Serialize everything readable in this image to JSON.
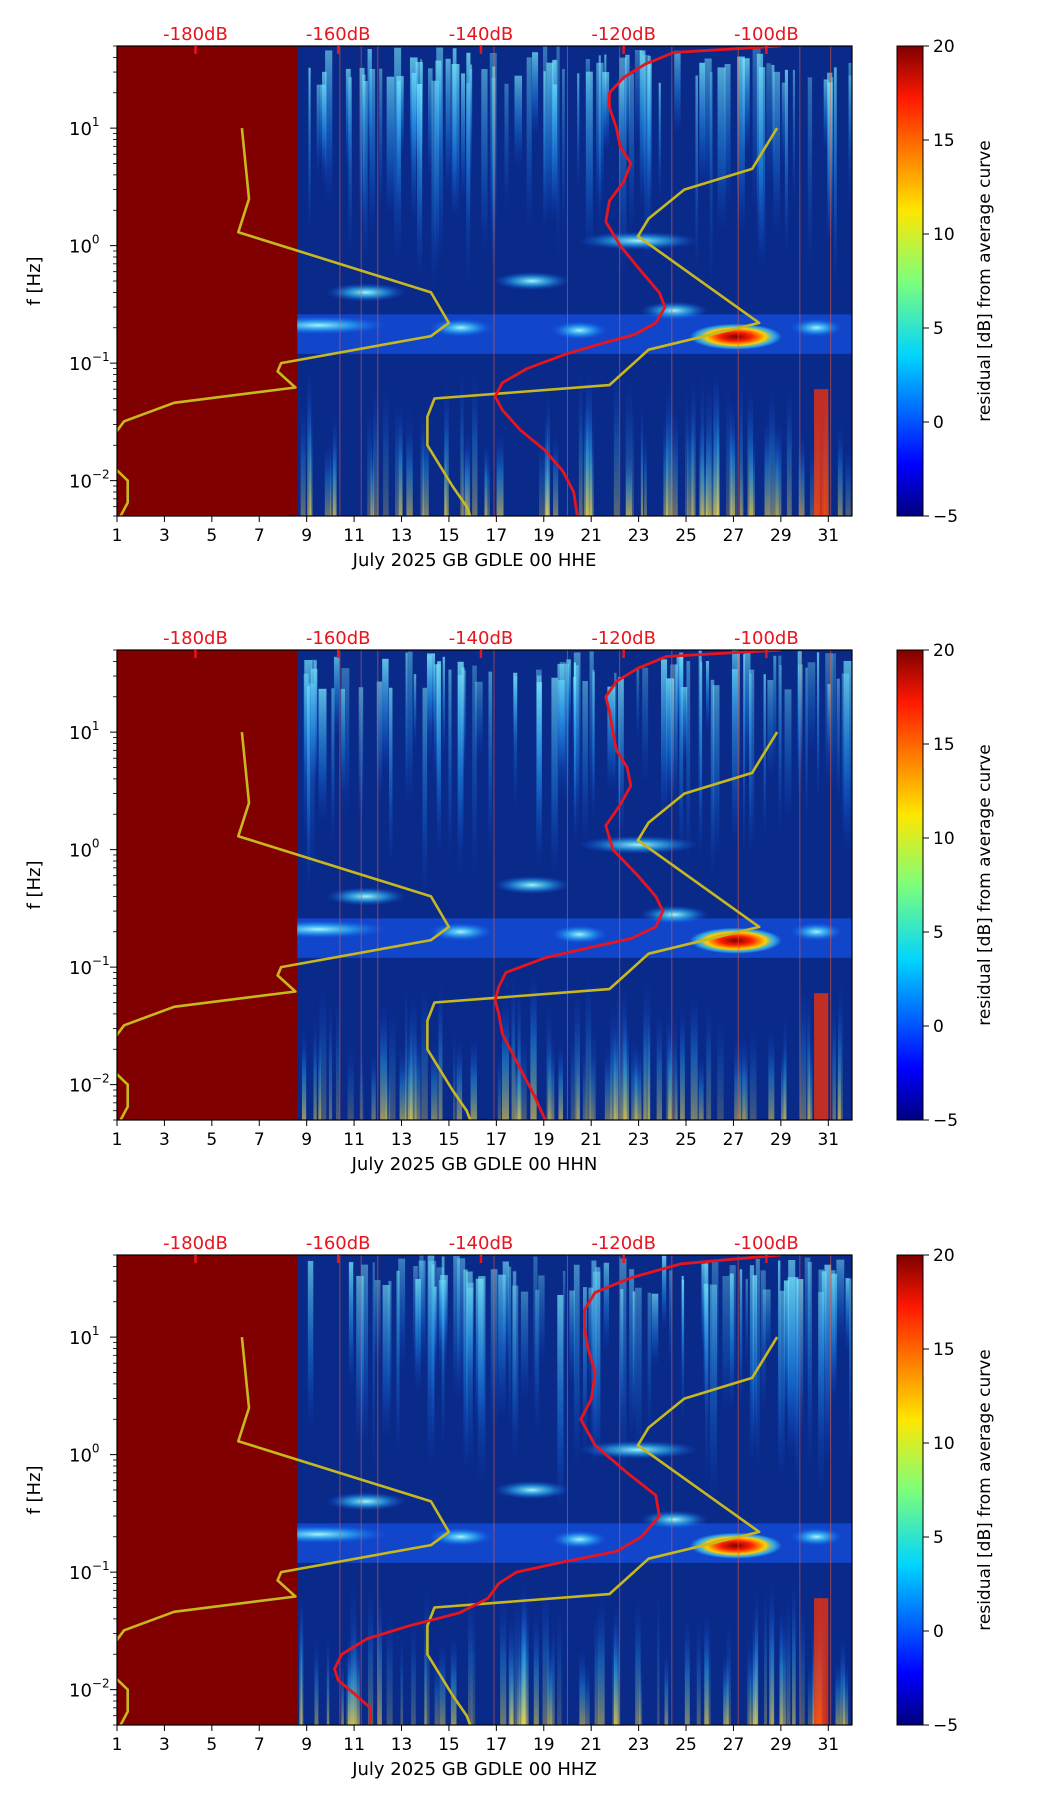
{
  "colors": {
    "background_no_data": "#800000",
    "spectrogram_base": "#0a2a8a",
    "median_curve": "#e8141e",
    "noise_model": "#c8b820",
    "top_labels": "#e8141e",
    "axis": "#000000"
  },
  "colorbar": {
    "label": "residual [dB] from average curve",
    "ticks": [
      "20",
      "15",
      "10",
      "5",
      "0",
      "−5"
    ],
    "tick_values": [
      20,
      15,
      10,
      5,
      0,
      -5
    ],
    "range": [
      -5,
      20
    ]
  },
  "chart_data": [
    {
      "type": "heatmap",
      "title": "",
      "xlabel": "July 2025 GB GDLE 00 HHE",
      "ylabel": "f [Hz]",
      "x_ticks": [
        "1",
        "3",
        "5",
        "7",
        "9",
        "11",
        "13",
        "15",
        "17",
        "19",
        "21",
        "23",
        "25",
        "27",
        "29",
        "31"
      ],
      "x_tick_values": [
        1,
        3,
        5,
        7,
        9,
        11,
        13,
        15,
        17,
        19,
        21,
        23,
        25,
        27,
        29,
        31
      ],
      "xlim": [
        1,
        32
      ],
      "ylim": [
        0.005,
        50
      ],
      "y_scale": "log",
      "y_ticks": [
        {
          "value": 0.01,
          "base": "10",
          "exp": "−2"
        },
        {
          "value": 0.1,
          "base": "10",
          "exp": "−1"
        },
        {
          "value": 1,
          "base": "10",
          "exp": "0"
        },
        {
          "value": 10,
          "base": "10",
          "exp": "1"
        }
      ],
      "top_axis_labels": [
        "-180dB",
        "-160dB",
        "-140dB",
        "-120dB",
        "-100dB"
      ],
      "top_axis_values": [
        -180,
        -160,
        -140,
        -120,
        -100
      ],
      "no_data_until_day": 8.6,
      "median_curve": [
        {
          "db": -126.5,
          "f": 0.005
        },
        {
          "db": -127,
          "f": 0.008
        },
        {
          "db": -128.5,
          "f": 0.012
        },
        {
          "db": -131,
          "f": 0.018
        },
        {
          "db": -134.5,
          "f": 0.027
        },
        {
          "db": -137,
          "f": 0.04
        },
        {
          "db": -138,
          "f": 0.052
        },
        {
          "db": -137,
          "f": 0.068
        },
        {
          "db": -133.5,
          "f": 0.09
        },
        {
          "db": -128,
          "f": 0.12
        },
        {
          "db": -122.5,
          "f": 0.15
        },
        {
          "db": -118.5,
          "f": 0.175
        },
        {
          "db": -115.5,
          "f": 0.22
        },
        {
          "db": -114.2,
          "f": 0.3
        },
        {
          "db": -115,
          "f": 0.4
        },
        {
          "db": -117.5,
          "f": 0.6
        },
        {
          "db": -120.5,
          "f": 1.0
        },
        {
          "db": -122.5,
          "f": 1.6
        },
        {
          "db": -122,
          "f": 2.4
        },
        {
          "db": -120,
          "f": 3.5
        },
        {
          "db": -119,
          "f": 5.0
        },
        {
          "db": -120.5,
          "f": 7.0
        },
        {
          "db": -121,
          "f": 10.0
        },
        {
          "db": -122,
          "f": 15.0
        },
        {
          "db": -122,
          "f": 20.0
        },
        {
          "db": -120,
          "f": 27.0
        },
        {
          "db": -117,
          "f": 35.0
        },
        {
          "db": -113,
          "f": 44.0
        },
        {
          "db": -98,
          "f": 50.0
        }
      ],
      "noise_model": {
        "low": [
          {
            "db": -173.5,
            "f": 10.0
          },
          {
            "db": -172.5,
            "f": 2.5
          },
          {
            "db": -174,
            "f": 1.3
          },
          {
            "db": -147,
            "f": 0.4
          },
          {
            "db": -144.5,
            "f": 0.22
          },
          {
            "db": -147,
            "f": 0.17
          },
          {
            "db": -168,
            "f": 0.1
          },
          {
            "db": -168.5,
            "f": 0.085
          },
          {
            "db": -166,
            "f": 0.062
          },
          {
            "db": -183,
            "f": 0.046
          },
          {
            "db": -190,
            "f": 0.032
          },
          {
            "db": -192,
            "f": 0.022
          },
          {
            "db": -192,
            "f": 0.014
          },
          {
            "db": -189.5,
            "f": 0.01
          },
          {
            "db": -189.5,
            "f": 0.0065
          },
          {
            "db": -190.5,
            "f": 0.005
          }
        ],
        "high": [
          {
            "db": -141.5,
            "f": 0.005
          },
          {
            "db": -142,
            "f": 0.006
          },
          {
            "db": -144,
            "f": 0.009
          },
          {
            "db": -147.5,
            "f": 0.02
          },
          {
            "db": -147.5,
            "f": 0.035
          },
          {
            "db": -146.5,
            "f": 0.05
          },
          {
            "db": -122,
            "f": 0.065
          },
          {
            "db": -116.5,
            "f": 0.13
          },
          {
            "db": -101,
            "f": 0.22
          },
          {
            "db": -118,
            "f": 1.2
          },
          {
            "db": -116.5,
            "f": 1.7
          },
          {
            "db": -111.5,
            "f": 3.0
          },
          {
            "db": -102,
            "f": 4.5
          },
          {
            "db": -98.5,
            "f": 10.0
          }
        ]
      }
    },
    {
      "type": "heatmap",
      "title": "",
      "xlabel": "July 2025 GB GDLE 00 HHN",
      "ylabel": "f [Hz]",
      "x_ticks": [
        "1",
        "3",
        "5",
        "7",
        "9",
        "11",
        "13",
        "15",
        "17",
        "19",
        "21",
        "23",
        "25",
        "27",
        "29",
        "31"
      ],
      "x_tick_values": [
        1,
        3,
        5,
        7,
        9,
        11,
        13,
        15,
        17,
        19,
        21,
        23,
        25,
        27,
        29,
        31
      ],
      "xlim": [
        1,
        32
      ],
      "ylim": [
        0.005,
        50
      ],
      "y_scale": "log",
      "y_ticks": [
        {
          "value": 0.01,
          "base": "10",
          "exp": "−2"
        },
        {
          "value": 0.1,
          "base": "10",
          "exp": "−1"
        },
        {
          "value": 1,
          "base": "10",
          "exp": "0"
        },
        {
          "value": 10,
          "base": "10",
          "exp": "1"
        }
      ],
      "top_axis_labels": [
        "-180dB",
        "-160dB",
        "-140dB",
        "-120dB",
        "-100dB"
      ],
      "top_axis_values": [
        -180,
        -160,
        -140,
        -120,
        -100
      ],
      "no_data_until_day": 8.6,
      "median_curve": [
        {
          "db": -131,
          "f": 0.005
        },
        {
          "db": -132.5,
          "f": 0.008
        },
        {
          "db": -134,
          "f": 0.012
        },
        {
          "db": -135.5,
          "f": 0.018
        },
        {
          "db": -137,
          "f": 0.027
        },
        {
          "db": -137.5,
          "f": 0.04
        },
        {
          "db": -138,
          "f": 0.052
        },
        {
          "db": -137.5,
          "f": 0.068
        },
        {
          "db": -136.5,
          "f": 0.09
        },
        {
          "db": -131,
          "f": 0.12
        },
        {
          "db": -124,
          "f": 0.15
        },
        {
          "db": -119,
          "f": 0.175
        },
        {
          "db": -115.5,
          "f": 0.22
        },
        {
          "db": -114.5,
          "f": 0.3
        },
        {
          "db": -115.5,
          "f": 0.4
        },
        {
          "db": -118,
          "f": 0.6
        },
        {
          "db": -121.5,
          "f": 1.0
        },
        {
          "db": -122.5,
          "f": 1.6
        },
        {
          "db": -120.5,
          "f": 2.4
        },
        {
          "db": -119,
          "f": 3.5
        },
        {
          "db": -119.5,
          "f": 5.0
        },
        {
          "db": -121,
          "f": 7.0
        },
        {
          "db": -121.5,
          "f": 10.0
        },
        {
          "db": -122,
          "f": 15.0
        },
        {
          "db": -122.5,
          "f": 20.0
        },
        {
          "db": -121,
          "f": 27.0
        },
        {
          "db": -118,
          "f": 35.0
        },
        {
          "db": -114,
          "f": 44.0
        },
        {
          "db": -98,
          "f": 50.0
        }
      ],
      "noise_model": {
        "low": [
          {
            "db": -173.5,
            "f": 10.0
          },
          {
            "db": -172.5,
            "f": 2.5
          },
          {
            "db": -174,
            "f": 1.3
          },
          {
            "db": -147,
            "f": 0.4
          },
          {
            "db": -144.5,
            "f": 0.22
          },
          {
            "db": -147,
            "f": 0.17
          },
          {
            "db": -168,
            "f": 0.1
          },
          {
            "db": -168.5,
            "f": 0.085
          },
          {
            "db": -166,
            "f": 0.062
          },
          {
            "db": -183,
            "f": 0.046
          },
          {
            "db": -190,
            "f": 0.032
          },
          {
            "db": -192,
            "f": 0.022
          },
          {
            "db": -192,
            "f": 0.014
          },
          {
            "db": -189.5,
            "f": 0.01
          },
          {
            "db": -189.5,
            "f": 0.0065
          },
          {
            "db": -190.5,
            "f": 0.005
          }
        ],
        "high": [
          {
            "db": -141.5,
            "f": 0.005
          },
          {
            "db": -142,
            "f": 0.006
          },
          {
            "db": -144,
            "f": 0.009
          },
          {
            "db": -147.5,
            "f": 0.02
          },
          {
            "db": -147.5,
            "f": 0.035
          },
          {
            "db": -146.5,
            "f": 0.05
          },
          {
            "db": -122,
            "f": 0.065
          },
          {
            "db": -116.5,
            "f": 0.13
          },
          {
            "db": -101,
            "f": 0.22
          },
          {
            "db": -118,
            "f": 1.2
          },
          {
            "db": -116.5,
            "f": 1.7
          },
          {
            "db": -111.5,
            "f": 3.0
          },
          {
            "db": -102,
            "f": 4.5
          },
          {
            "db": -98.5,
            "f": 10.0
          }
        ]
      }
    },
    {
      "type": "heatmap",
      "title": "",
      "xlabel": "July 2025 GB GDLE 00 HHZ",
      "ylabel": "f [Hz]",
      "x_ticks": [
        "1",
        "3",
        "5",
        "7",
        "9",
        "11",
        "13",
        "15",
        "17",
        "19",
        "21",
        "23",
        "25",
        "27",
        "29",
        "31"
      ],
      "x_tick_values": [
        1,
        3,
        5,
        7,
        9,
        11,
        13,
        15,
        17,
        19,
        21,
        23,
        25,
        27,
        29,
        31
      ],
      "xlim": [
        1,
        32
      ],
      "ylim": [
        0.005,
        50
      ],
      "y_scale": "log",
      "y_ticks": [
        {
          "value": 0.01,
          "base": "10",
          "exp": "−2"
        },
        {
          "value": 0.1,
          "base": "10",
          "exp": "−1"
        },
        {
          "value": 1,
          "base": "10",
          "exp": "0"
        },
        {
          "value": 10,
          "base": "10",
          "exp": "1"
        }
      ],
      "top_axis_labels": [
        "-180dB",
        "-160dB",
        "-140dB",
        "-120dB",
        "-100dB"
      ],
      "top_axis_values": [
        -180,
        -160,
        -140,
        -120,
        -100
      ],
      "no_data_until_day": 8.6,
      "median_curve": [
        {
          "db": -155.5,
          "f": 0.005
        },
        {
          "db": -155.5,
          "f": 0.007
        },
        {
          "db": -158,
          "f": 0.0095
        },
        {
          "db": -160,
          "f": 0.012
        },
        {
          "db": -160.5,
          "f": 0.015
        },
        {
          "db": -159.5,
          "f": 0.02
        },
        {
          "db": -156,
          "f": 0.027
        },
        {
          "db": -150,
          "f": 0.035
        },
        {
          "db": -143,
          "f": 0.045
        },
        {
          "db": -139,
          "f": 0.06
        },
        {
          "db": -137.5,
          "f": 0.08
        },
        {
          "db": -135,
          "f": 0.1
        },
        {
          "db": -129,
          "f": 0.12
        },
        {
          "db": -121,
          "f": 0.15
        },
        {
          "db": -117.5,
          "f": 0.2
        },
        {
          "db": -115,
          "f": 0.3
        },
        {
          "db": -115.5,
          "f": 0.45
        },
        {
          "db": -119.5,
          "f": 0.7
        },
        {
          "db": -124,
          "f": 1.2
        },
        {
          "db": -126,
          "f": 2.0
        },
        {
          "db": -124.5,
          "f": 3.0
        },
        {
          "db": -124,
          "f": 5.0
        },
        {
          "db": -125,
          "f": 8.0
        },
        {
          "db": -125.5,
          "f": 12.0
        },
        {
          "db": -125.5,
          "f": 17.0
        },
        {
          "db": -124,
          "f": 24.0
        },
        {
          "db": -119,
          "f": 32.0
        },
        {
          "db": -112,
          "f": 42.0
        },
        {
          "db": -98,
          "f": 50.0
        }
      ],
      "noise_model": {
        "low": [
          {
            "db": -173.5,
            "f": 10.0
          },
          {
            "db": -172.5,
            "f": 2.5
          },
          {
            "db": -174,
            "f": 1.3
          },
          {
            "db": -147,
            "f": 0.4
          },
          {
            "db": -144.5,
            "f": 0.22
          },
          {
            "db": -147,
            "f": 0.17
          },
          {
            "db": -168,
            "f": 0.1
          },
          {
            "db": -168.5,
            "f": 0.085
          },
          {
            "db": -166,
            "f": 0.062
          },
          {
            "db": -183,
            "f": 0.046
          },
          {
            "db": -190,
            "f": 0.032
          },
          {
            "db": -192,
            "f": 0.022
          },
          {
            "db": -192,
            "f": 0.014
          },
          {
            "db": -189.5,
            "f": 0.01
          },
          {
            "db": -189.5,
            "f": 0.0065
          },
          {
            "db": -190.5,
            "f": 0.005
          }
        ],
        "high": [
          {
            "db": -141.5,
            "f": 0.005
          },
          {
            "db": -142,
            "f": 0.006
          },
          {
            "db": -144,
            "f": 0.009
          },
          {
            "db": -147.5,
            "f": 0.02
          },
          {
            "db": -147.5,
            "f": 0.035
          },
          {
            "db": -146.5,
            "f": 0.05
          },
          {
            "db": -122,
            "f": 0.065
          },
          {
            "db": -116.5,
            "f": 0.13
          },
          {
            "db": -101,
            "f": 0.22
          },
          {
            "db": -118,
            "f": 1.2
          },
          {
            "db": -116.5,
            "f": 1.7
          },
          {
            "db": -111.5,
            "f": 3.0
          },
          {
            "db": -102,
            "f": 4.5
          },
          {
            "db": -98.5,
            "f": 10.0
          }
        ]
      }
    }
  ]
}
